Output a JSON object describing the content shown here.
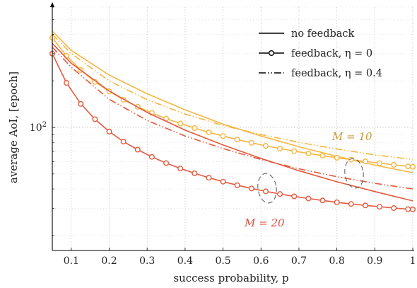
{
  "chart_data": {
    "type": "line",
    "xlabel": "success probability, p",
    "ylabel": "average AoI, [epoch]",
    "xlim": [
      0.05,
      1.0
    ],
    "ylim_log": [
      16,
      600
    ],
    "yscale": "log",
    "grid": true,
    "legend_position": "top-right",
    "x_ticks": [
      0.1,
      0.2,
      0.3,
      0.4,
      0.5,
      0.6,
      0.7,
      0.8,
      0.9,
      1
    ],
    "y_ticks": [
      {
        "value": 100,
        "base": "10",
        "exp": "2"
      }
    ],
    "legend": [
      {
        "label": "no feedback",
        "style": "solid"
      },
      {
        "label": "feedback, η = 0",
        "style": "solid-circle"
      },
      {
        "label": "feedback, η = 0.4",
        "style": "dashdotdot"
      }
    ],
    "annotations": [
      {
        "text": "M = 10",
        "color": "#c89a3c"
      },
      {
        "text": "M = 20",
        "color": "#d9503f"
      }
    ],
    "colors": {
      "M10": "#f5b642",
      "M20": "#e35a3e"
    },
    "series": [
      {
        "group": "M = 10",
        "style": "solid",
        "x": [
          0.05,
          0.1,
          0.2,
          0.3,
          0.4,
          0.5,
          0.6,
          0.7,
          0.8,
          0.9,
          1.0
        ],
        "values": [
          420,
          315,
          218,
          165,
          130,
          105,
          88,
          75,
          65,
          57,
          51
        ]
      },
      {
        "group": "M = 10",
        "style": "solid-circle",
        "x": [
          0.05,
          0.0875,
          0.125,
          0.1625,
          0.2,
          0.2375,
          0.275,
          0.3125,
          0.35,
          0.3875,
          0.425,
          0.4625,
          0.5,
          0.5375,
          0.575,
          0.6125,
          0.65,
          0.6875,
          0.725,
          0.7625,
          0.8,
          0.8375,
          0.875,
          0.9125,
          0.95,
          0.9875,
          1.0
        ],
        "values": [
          380,
          290,
          235,
          197,
          171,
          151,
          136,
          124,
          114,
          106,
          99,
          93,
          88,
          83.5,
          79.5,
          76,
          73,
          70.3,
          67.9,
          65.7,
          63.7,
          61.9,
          60.2,
          58.7,
          57.3,
          56,
          55.6
        ]
      },
      {
        "group": "M = 10",
        "style": "dashdotdot",
        "x": [
          0.05,
          0.1,
          0.2,
          0.3,
          0.4,
          0.5,
          0.6,
          0.7,
          0.8,
          0.9,
          1.0
        ],
        "values": [
          400,
          300,
          200,
          151,
          122,
          103,
          90,
          80,
          72.5,
          66.5,
          62
        ]
      },
      {
        "group": "M = 20",
        "style": "solid",
        "x": [
          0.05,
          0.1,
          0.2,
          0.3,
          0.4,
          0.5,
          0.6,
          0.7,
          0.8,
          0.9,
          1.0
        ],
        "values": [
          350,
          260,
          172,
          125,
          96,
          77,
          63,
          52.5,
          44.5,
          38.5,
          33.5
        ]
      },
      {
        "group": "M = 20",
        "style": "solid-circle",
        "x": [
          0.05,
          0.0875,
          0.125,
          0.1625,
          0.2,
          0.2375,
          0.275,
          0.3125,
          0.35,
          0.3875,
          0.425,
          0.4625,
          0.5,
          0.5375,
          0.575,
          0.6125,
          0.65,
          0.6875,
          0.725,
          0.7625,
          0.8,
          0.8375,
          0.875,
          0.9125,
          0.95,
          0.9875,
          1.0
        ],
        "values": [
          300,
          194,
          142,
          113,
          94,
          81,
          71.8,
          64.5,
          58.8,
          54.3,
          50.5,
          47.3,
          44.6,
          42.3,
          40.3,
          38.6,
          37.1,
          35.8,
          34.7,
          33.7,
          32.8,
          32,
          31.3,
          30.7,
          30.1,
          29.6,
          29.5
        ]
      },
      {
        "group": "M = 20",
        "style": "dashdotdot",
        "x": [
          0.05,
          0.1,
          0.2,
          0.3,
          0.4,
          0.5,
          0.6,
          0.7,
          0.8,
          0.9,
          1.0
        ],
        "values": [
          330,
          245,
          152,
          111,
          88,
          73,
          62,
          54,
          48,
          43.5,
          40
        ]
      }
    ]
  }
}
